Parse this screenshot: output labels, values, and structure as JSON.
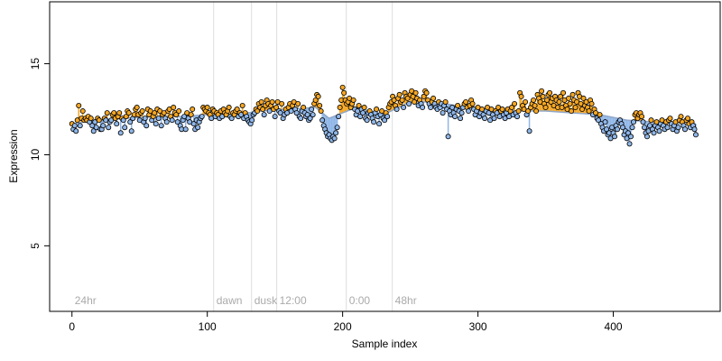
{
  "chart_data": {
    "type": "stem-scatter",
    "xlabel": "Sample index",
    "ylabel": "Expression",
    "xlim": [
      -16.5,
      479
    ],
    "ylim": [
      1.4,
      18.4
    ],
    "xticks": [
      0,
      100,
      200,
      300,
      400
    ],
    "yticks": [
      5,
      10,
      15
    ],
    "above_color": "#f5a623",
    "below_color": "#8fb6e8",
    "trend_color": "#8fa7c9",
    "annotations": [
      {
        "x": 0,
        "label": "24hr"
      },
      {
        "x": 104.7,
        "label": "dawn"
      },
      {
        "x": 132.7,
        "label": "dusk"
      },
      {
        "x": 151.3,
        "label": "12:00"
      },
      {
        "x": 202.7,
        "label": "0:00"
      },
      {
        "x": 236.7,
        "label": "48hr"
      }
    ],
    "vlines": [
      104.7,
      132.7,
      151.3,
      202.7,
      236.7
    ],
    "trend": {
      "x": [
        0,
        20,
        40,
        60,
        80,
        100,
        120,
        140,
        160,
        180,
        190,
        200,
        210,
        230,
        250,
        270,
        290,
        310,
        330,
        350,
        370,
        390,
        410,
        430,
        450,
        461
      ],
      "values": [
        11.7,
        11.9,
        12.0,
        12.1,
        12.1,
        12.2,
        12.2,
        12.4,
        12.5,
        12.6,
        12.0,
        12.3,
        12.6,
        12.2,
        12.9,
        12.9,
        12.6,
        12.4,
        12.4,
        12.4,
        12.3,
        12.2,
        11.9,
        11.8,
        11.7,
        11.7
      ]
    },
    "values": [
      11.7,
      11.4,
      11.6,
      11.3,
      11.9,
      12.7,
      11.6,
      12.0,
      12.4,
      11.9,
      12.0,
      11.9,
      12.1,
      11.8,
      12.0,
      11.6,
      11.3,
      11.8,
      11.5,
      12.0,
      11.9,
      11.4,
      11.4,
      11.6,
      12.0,
      11.9,
      12.3,
      11.5,
      11.8,
      11.9,
      12.2,
      12.3,
      12.0,
      11.7,
      12.1,
      12.3,
      11.2,
      12.0,
      11.9,
      11.5,
      12.1,
      12.4,
      12.3,
      11.8,
      11.3,
      12.0,
      12.2,
      12.5,
      12.6,
      12.2,
      11.9,
      12.3,
      12.4,
      11.8,
      12.0,
      11.6,
      12.5,
      12.2,
      12.4,
      11.9,
      12.1,
      12.3,
      11.7,
      12.5,
      12.0,
      12.4,
      11.6,
      12.2,
      12.3,
      12.0,
      11.8,
      12.4,
      12.5,
      12.1,
      11.9,
      12.6,
      12.3,
      12.2,
      11.8,
      12.4,
      11.6,
      11.4,
      11.9,
      12.1,
      11.4,
      12.3,
      12.0,
      11.8,
      12.2,
      12.5,
      11.7,
      11.4,
      11.9,
      11.5,
      11.8,
      12.0,
      12.1,
      12.6,
      12.5,
      12.4,
      12.6,
      12.3,
      12.2,
      12.0,
      12.5,
      12.4,
      12.1,
      12.3,
      12.2,
      12.0,
      12.4,
      12.1,
      12.5,
      12.3,
      12.2,
      12.4,
      12.6,
      12.1,
      12.0,
      12.3,
      12.2,
      12.4,
      12.5,
      12.1,
      12.3,
      12.2,
      12.7,
      12.0,
      12.3,
      12.1,
      11.9,
      11.8,
      11.7,
      11.9,
      12.2,
      12.3,
      12.5,
      12.4,
      12.8,
      12.6,
      12.9,
      12.5,
      12.2,
      12.7,
      13.0,
      12.8,
      12.4,
      12.7,
      12.9,
      12.5,
      12.1,
      12.6,
      12.9,
      12.4,
      12.3,
      12.8,
      12.0,
      12.2,
      12.5,
      12.3,
      12.6,
      12.8,
      12.4,
      12.7,
      12.9,
      12.5,
      12.3,
      12.8,
      12.1,
      12.0,
      12.4,
      12.6,
      12.3,
      12.1,
      12.2,
      11.9,
      12.0,
      12.5,
      12.2,
      12.8,
      13.0,
      13.3,
      13.2,
      12.7,
      12.4,
      11.9,
      11.6,
      11.4,
      11.2,
      11.0,
      11.1,
      10.9,
      10.8,
      11.0,
      10.9,
      11.2,
      11.5,
      12.1,
      12.6,
      13.0,
      13.7,
      13.4,
      13.0,
      12.8,
      12.9,
      13.1,
      12.6,
      12.8,
      13.0,
      12.5,
      12.2,
      12.4,
      12.7,
      12.1,
      12.5,
      12.3,
      12.6,
      12.0,
      11.9,
      12.3,
      12.4,
      12.2,
      12.0,
      11.8,
      12.3,
      12.5,
      12.1,
      11.7,
      12.2,
      12.4,
      12.0,
      11.9,
      12.3,
      12.1,
      12.6,
      12.8,
      12.9,
      13.2,
      13.0,
      12.7,
      12.5,
      13.1,
      13.3,
      12.9,
      13.0,
      12.6,
      13.4,
      13.2,
      13.1,
      12.8,
      13.3,
      13.5,
      13.2,
      12.9,
      13.4,
      13.1,
      12.7,
      13.0,
      12.8,
      12.6,
      13.2,
      13.5,
      13.4,
      13.0,
      12.8,
      12.6,
      12.9,
      13.1,
      12.8,
      12.6,
      12.5,
      12.9,
      12.6,
      12.8,
      12.3,
      12.7,
      12.9,
      12.5,
      11.0,
      12.4,
      12.2,
      12.6,
      12.3,
      12.1,
      12.5,
      12.7,
      12.4,
      12.0,
      12.3,
      12.6,
      12.8,
      12.9,
      12.6,
      12.4,
      12.7,
      13.0,
      12.8,
      12.5,
      12.2,
      12.4,
      12.6,
      12.1,
      12.3,
      12.5,
      12.2,
      12.0,
      12.4,
      12.6,
      12.3,
      11.9,
      12.5,
      12.2,
      12.0,
      12.4,
      12.3,
      12.6,
      12.1,
      12.4,
      12.5,
      12.2,
      12.0,
      12.3,
      12.5,
      12.1,
      12.4,
      12.6,
      12.2,
      12.8,
      12.3,
      12.1,
      12.4,
      13.4,
      13.2,
      12.7,
      12.5,
      12.9,
      12.2,
      12.4,
      11.3,
      12.6,
      12.8,
      13.0,
      12.7,
      12.4,
      13.3,
      13.1,
      12.9,
      13.5,
      13.2,
      12.8,
      12.6,
      13.0,
      13.3,
      13.4,
      12.9,
      13.1,
      12.7,
      13.2,
      13.0,
      12.6,
      12.9,
      13.2,
      12.6,
      13.4,
      13.0,
      12.7,
      12.5,
      13.1,
      12.8,
      12.4,
      13.3,
      13.0,
      12.6,
      12.9,
      13.4,
      13.2,
      12.8,
      12.5,
      13.1,
      12.7,
      12.9,
      12.6,
      12.4,
      13.0,
      12.8,
      12.2,
      12.5,
      12.3,
      12.0,
      11.9,
      12.2,
      11.7,
      11.5,
      11.3,
      11.8,
      11.4,
      11.1,
      11.2,
      10.9,
      11.5,
      11.2,
      11.0,
      11.6,
      11.4,
      11.8,
      11.9,
      11.7,
      11.5,
      11.1,
      11.3,
      10.9,
      11.2,
      10.6,
      11.0,
      11.5,
      11.8,
      12.2,
      12.3,
      12.0,
      12.2,
      12.3,
      12.1,
      11.8,
      11.5,
      11.2,
      11.0,
      11.3,
      11.6,
      11.9,
      11.4,
      11.2,
      11.6,
      11.8,
      11.5,
      11.3,
      11.7,
      11.9,
      11.6,
      11.4,
      11.8,
      11.5,
      11.9,
      12.0,
      11.7,
      11.4,
      11.6,
      11.8,
      11.3,
      11.5,
      11.9,
      12.1,
      11.8,
      11.6,
      11.4,
      11.9,
      12.0,
      11.7,
      11.5,
      11.8,
      11.6,
      11.4,
      11.1
    ]
  }
}
